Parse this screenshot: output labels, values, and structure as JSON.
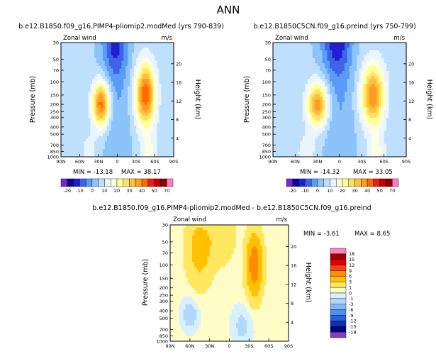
{
  "page_title": "ANN",
  "chart_data": [
    {
      "type": "heatmap",
      "title": "b.e12.B1850.f09_g16.PIMP4-pliomip2.modMed (yrs 790-839)",
      "left_string": "Zonal wind",
      "right_string": "m/s",
      "ylabel": "Pressure (mb)",
      "ylabel_right": "Height (km)",
      "x_ticks": [
        "90N",
        "60N",
        "30N",
        "0",
        "30S",
        "60S",
        "90S"
      ],
      "y_ticks": [
        "30",
        "50",
        "70",
        "100",
        "150",
        "200",
        "250",
        "300",
        "400",
        "500",
        "700",
        "850",
        "1000"
      ],
      "height_ticks": [
        "20",
        "16",
        "12",
        "8",
        "4"
      ],
      "min_label": "MIN = -13.18",
      "max_label": "MAX = 38.17",
      "colorbar_labels": [
        "-20",
        "-10",
        "0",
        "10",
        "20",
        "30",
        "40",
        "50",
        "70"
      ],
      "jets": [
        {
          "lat": 26,
          "p": 200,
          "value": 36
        },
        {
          "lat": -45,
          "p": 150,
          "value": 38
        },
        {
          "lat": 5,
          "p": 30,
          "value": -13
        }
      ]
    },
    {
      "type": "heatmap",
      "title": "b.e12.B1850C5CN.f09_g16.preind (yrs 750-799)",
      "left_string": "Zonal wind",
      "right_string": "m/s",
      "ylabel": "Pressure (mb)",
      "ylabel_right": "Height (km)",
      "x_ticks": [
        "90N",
        "60N",
        "30N",
        "0",
        "30S",
        "60S",
        "90S"
      ],
      "y_ticks": [
        "30",
        "50",
        "70",
        "100",
        "150",
        "200",
        "250",
        "300",
        "400",
        "500",
        "700",
        "850",
        "1000"
      ],
      "height_ticks": [
        "20",
        "16",
        "12",
        "8",
        "4"
      ],
      "min_label": "MIN = -14.32",
      "max_label": "MAX = 33.05",
      "colorbar_labels": [
        "-20",
        "-10",
        "0",
        "10",
        "20",
        "30",
        "40",
        "50",
        "70"
      ],
      "jets": [
        {
          "lat": 30,
          "p": 200,
          "value": 32
        },
        {
          "lat": -45,
          "p": 150,
          "value": 33
        },
        {
          "lat": 5,
          "p": 30,
          "value": -14
        }
      ]
    },
    {
      "type": "heatmap",
      "title": "b.e12.B1850.f09_g16.PIMP4-pliomip2.modMed - b.e12.B1850C5CN.f09_g16.preind",
      "left_string": "Zonal wind",
      "right_string": "m/s",
      "ylabel": "Pressure (mb)",
      "ylabel_right": "Height (km)",
      "x_ticks": [
        "90N",
        "60N",
        "30N",
        "0",
        "30S",
        "60S",
        "90S"
      ],
      "y_ticks": [
        "30",
        "50",
        "70",
        "100",
        "150",
        "200",
        "250",
        "300",
        "400",
        "500",
        "700",
        "850",
        "1000"
      ],
      "height_ticks": [
        "20",
        "16",
        "12",
        "8",
        "4"
      ],
      "min_label": "MIN = -3.61",
      "max_label": "MAX = 8.65",
      "colorbar_labels": [
        "18",
        "15",
        "12",
        "9",
        "6",
        "3",
        "1",
        "0",
        "-1",
        "-3",
        "-6",
        "-9",
        "-12",
        "-15",
        "-18"
      ]
    }
  ],
  "colors": {
    "abs_scale": [
      "#7d26cd",
      "#0a0a96",
      "#2020d0",
      "#3d63e8",
      "#5a9cf5",
      "#8cc3fa",
      "#bfe0fc",
      "#e9f6ff",
      "#ffffe1",
      "#ffff96",
      "#ffe164",
      "#ffbe3c",
      "#ff9b1e",
      "#ff6a00",
      "#e61e1e",
      "#c30000",
      "#8c0000",
      "#ff78c8"
    ],
    "diff_scale": [
      "#ff80c0",
      "#a00000",
      "#e00000",
      "#ff4000",
      "#ff8c00",
      "#ffc000",
      "#ffe860",
      "#fffcc8",
      "#d9f0ff",
      "#b0d8ff",
      "#80b8f8",
      "#4f90ee",
      "#2860e0",
      "#1030b0",
      "#000080",
      "#8040c0"
    ]
  }
}
